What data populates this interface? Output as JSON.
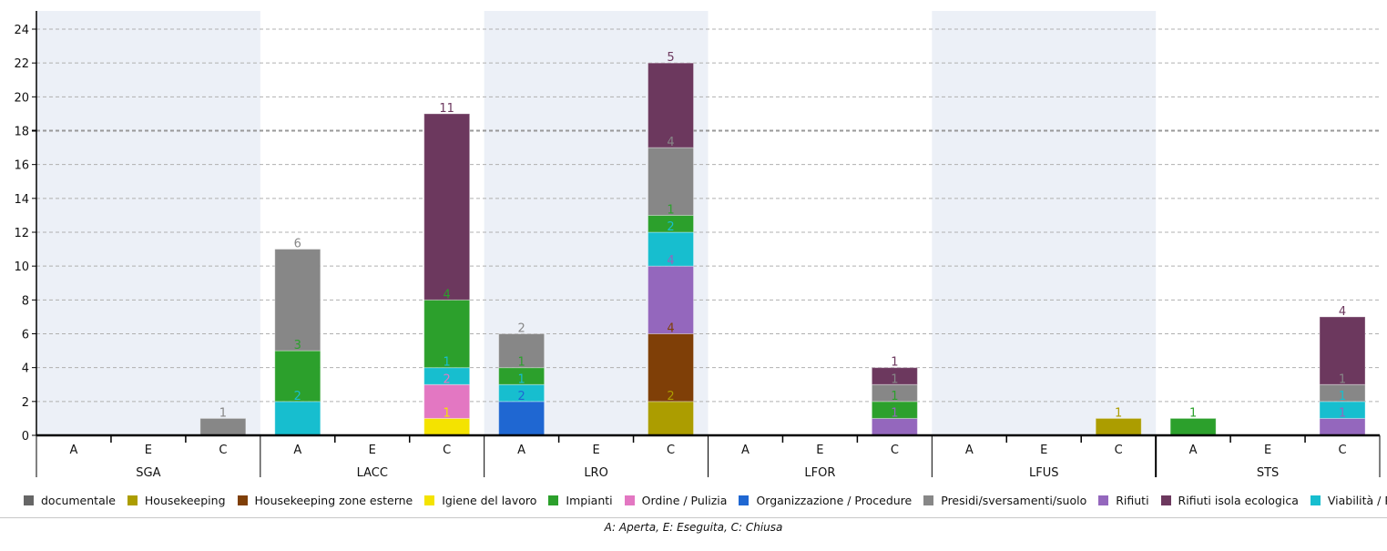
{
  "chart_data": {
    "type": "bar",
    "stacked": true,
    "groups": [
      "SGA",
      "LACC",
      "LRO",
      "LFOR",
      "LFUS",
      "STS"
    ],
    "subcategories": [
      "A",
      "E",
      "C"
    ],
    "shaded_groups": [
      "SGA",
      "LRO",
      "LFUS"
    ],
    "yticks": [
      0,
      2,
      4,
      6,
      8,
      10,
      12,
      14,
      16,
      18,
      20,
      22,
      24
    ],
    "ylim": [
      0,
      24.5
    ],
    "grid": true,
    "highlight_line": 18,
    "legend_position": "bottom",
    "footnote": "A: Aperta, E: Eseguita, C: Chiusa",
    "series": [
      {
        "name": "documentale",
        "color": "#666666",
        "values": [
          0,
          0,
          0,
          0,
          0,
          0,
          0,
          0,
          0,
          0,
          0,
          0,
          0,
          0,
          0,
          0,
          0,
          0
        ]
      },
      {
        "name": "Housekeeping",
        "color": "#ac9d00",
        "values": [
          0,
          0,
          0,
          0,
          0,
          0,
          0,
          0,
          2,
          0,
          0,
          0,
          0,
          0,
          1,
          0,
          0,
          0
        ]
      },
      {
        "name": "Housekeeping zone esterne",
        "color": "#7f3f07",
        "values": [
          0,
          0,
          0,
          0,
          0,
          0,
          0,
          0,
          4,
          0,
          0,
          0,
          0,
          0,
          0,
          0,
          0,
          0
        ]
      },
      {
        "name": "Igiene del lavoro",
        "color": "#f4e300",
        "values": [
          0,
          0,
          0,
          0,
          0,
          1,
          0,
          0,
          0,
          0,
          0,
          0,
          0,
          0,
          0,
          0,
          0,
          0
        ]
      },
      {
        "name": "Impianti",
        "color": "#2ca02c",
        "values": [
          0,
          0,
          0,
          3,
          0,
          4,
          1,
          0,
          1,
          0,
          0,
          1,
          0,
          0,
          0,
          1,
          0,
          0
        ]
      },
      {
        "name": "Ordine / Pulizia",
        "color": "#e377c2",
        "values": [
          0,
          0,
          0,
          0,
          0,
          2,
          0,
          0,
          0,
          0,
          0,
          0,
          0,
          0,
          0,
          0,
          0,
          0
        ]
      },
      {
        "name": "Organizzazione / Procedure",
        "color": "#1f67d2",
        "values": [
          0,
          0,
          0,
          0,
          0,
          0,
          2,
          0,
          0,
          0,
          0,
          0,
          0,
          0,
          0,
          0,
          0,
          0
        ]
      },
      {
        "name": "Presidi/sversamenti/suolo",
        "color": "#878787",
        "values": [
          0,
          0,
          1,
          6,
          0,
          0,
          2,
          0,
          4,
          0,
          0,
          1,
          0,
          0,
          0,
          0,
          0,
          1
        ]
      },
      {
        "name": "Rifiuti",
        "color": "#9467bd",
        "values": [
          0,
          0,
          0,
          0,
          0,
          0,
          0,
          0,
          4,
          0,
          0,
          1,
          0,
          0,
          0,
          0,
          0,
          1
        ]
      },
      {
        "name": "Rifiuti isola ecologica",
        "color": "#6c385e",
        "values": [
          0,
          0,
          0,
          0,
          0,
          11,
          0,
          0,
          5,
          0,
          0,
          1,
          0,
          0,
          0,
          0,
          0,
          4
        ]
      },
      {
        "name": "Viabilità / Percorsi",
        "color": "#17becf",
        "values": [
          0,
          0,
          0,
          2,
          0,
          1,
          1,
          0,
          2,
          0,
          0,
          0,
          0,
          0,
          0,
          0,
          0,
          1
        ]
      }
    ]
  }
}
